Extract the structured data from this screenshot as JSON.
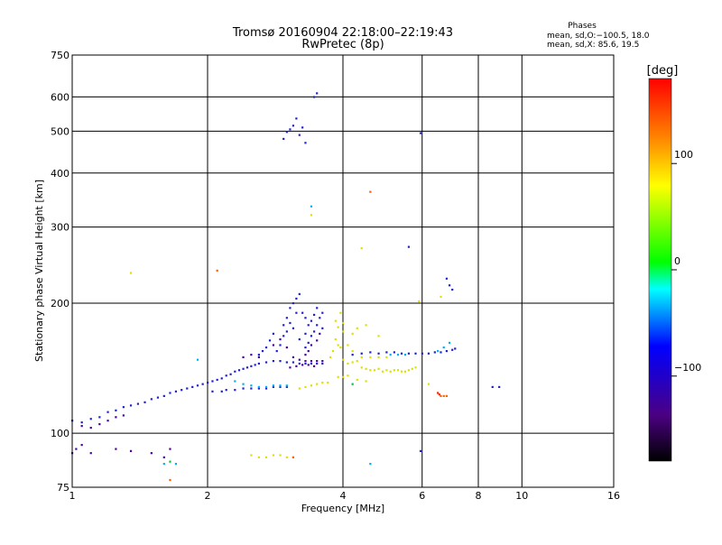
{
  "chart_data": {
    "type": "scatter",
    "title": "Tromsø 20160904 22:18:00–22:19:43",
    "subtitle": "RwPretec (8p)",
    "xlabel": "Frequency [MHz]",
    "ylabel": "Stationary phase Virtual Height [km]",
    "x_scale": "log",
    "y_scale": "log",
    "xlim": [
      1,
      16
    ],
    "ylim": [
      75,
      750
    ],
    "x_ticks": [
      1,
      2,
      4,
      6,
      8,
      10,
      16
    ],
    "x_tick_labels": [
      "1",
      "2",
      "4",
      "6",
      "8",
      "10",
      "16"
    ],
    "y_ticks": [
      75,
      100,
      200,
      300,
      400,
      500,
      600,
      750
    ],
    "y_tick_labels": [
      "75",
      "100",
      "200",
      "300",
      "400",
      "500",
      "600",
      "750"
    ],
    "grid": true,
    "phases_box": {
      "heading": "Phases",
      "line1": "mean, sd,O:−100.5, 18.0",
      "line2": "mean, sd,X:  85.6, 19.5"
    },
    "colorbar": {
      "label": "[deg]",
      "min": -180,
      "max": 180,
      "ticks": [
        100,
        0,
        -100
      ],
      "tick_labels": [
        "100",
        "0",
        "−100"
      ],
      "colors": [
        "#000000",
        "#4b0082",
        "#0000ff",
        "#00ffff",
        "#00ff00",
        "#ffff00",
        "#ff8000",
        "#ff0000"
      ]
    },
    "series": [
      {
        "color": "#2020d0",
        "points": [
          [
            1.0,
            107
          ],
          [
            1.05,
            106
          ],
          [
            1.1,
            108
          ],
          [
            1.15,
            109
          ],
          [
            1.2,
            112
          ],
          [
            1.25,
            113
          ],
          [
            1.3,
            115
          ],
          [
            1.35,
            116
          ],
          [
            1.4,
            117
          ],
          [
            1.45,
            118
          ],
          [
            1.5,
            120
          ],
          [
            1.55,
            121
          ],
          [
            1.6,
            122
          ],
          [
            1.65,
            124
          ],
          [
            1.7,
            125
          ],
          [
            1.75,
            126
          ],
          [
            1.8,
            127
          ],
          [
            1.85,
            128
          ],
          [
            1.9,
            129
          ],
          [
            1.95,
            130
          ],
          [
            2.0,
            131
          ],
          [
            2.05,
            132
          ],
          [
            2.1,
            133
          ],
          [
            2.15,
            134
          ],
          [
            2.2,
            136
          ],
          [
            2.25,
            137
          ],
          [
            2.3,
            139
          ],
          [
            2.35,
            140
          ],
          [
            2.4,
            141
          ],
          [
            2.45,
            142
          ],
          [
            2.5,
            143
          ],
          [
            2.55,
            144
          ],
          [
            2.6,
            145
          ],
          [
            2.7,
            146
          ],
          [
            2.8,
            147
          ],
          [
            2.9,
            147
          ],
          [
            3.0,
            146
          ],
          [
            3.1,
            146
          ],
          [
            3.2,
            145
          ],
          [
            3.3,
            145
          ],
          [
            3.4,
            145
          ],
          [
            3.5,
            145
          ],
          [
            3.6,
            145
          ],
          [
            2.2,
            126
          ],
          [
            2.3,
            126
          ],
          [
            2.4,
            127
          ],
          [
            2.5,
            127
          ],
          [
            2.6,
            127
          ],
          [
            2.7,
            127
          ],
          [
            2.8,
            128
          ],
          [
            2.9,
            128
          ],
          [
            3.0,
            128
          ],
          [
            2.05,
            125
          ],
          [
            2.15,
            125
          ],
          [
            4.2,
            152
          ],
          [
            4.4,
            153
          ],
          [
            4.6,
            154
          ],
          [
            4.8,
            153
          ],
          [
            5.0,
            154
          ],
          [
            5.2,
            154
          ],
          [
            5.4,
            153
          ],
          [
            5.6,
            153
          ],
          [
            5.8,
            153
          ],
          [
            6.0,
            153
          ],
          [
            6.2,
            153
          ],
          [
            6.4,
            154
          ],
          [
            6.6,
            154
          ],
          [
            6.8,
            155
          ],
          [
            7.0,
            156
          ],
          [
            7.1,
            157
          ],
          [
            3.6,
            190
          ],
          [
            3.55,
            185
          ],
          [
            3.5,
            178
          ],
          [
            3.45,
            172
          ],
          [
            3.4,
            168
          ],
          [
            3.35,
            162
          ],
          [
            3.3,
            158
          ],
          [
            3.5,
            195
          ],
          [
            3.45,
            188
          ],
          [
            3.4,
            182
          ],
          [
            3.6,
            175
          ],
          [
            3.3,
            170
          ],
          [
            3.2,
            165
          ],
          [
            3.1,
            175
          ],
          [
            3.05,
            180
          ],
          [
            3.0,
            172
          ],
          [
            2.95,
            168
          ],
          [
            2.9,
            160
          ],
          [
            2.85,
            155
          ],
          [
            3.15,
            190
          ],
          [
            3.1,
            200
          ],
          [
            3.05,
            195
          ],
          [
            3.0,
            185
          ],
          [
            2.95,
            178
          ],
          [
            2.8,
            170
          ],
          [
            2.75,
            164
          ],
          [
            2.7,
            158
          ],
          [
            2.65,
            155
          ],
          [
            2.6,
            152
          ],
          [
            3.2,
            210
          ],
          [
            3.15,
            205
          ],
          [
            3.25,
            190
          ],
          [
            3.3,
            185
          ],
          [
            3.35,
            178
          ],
          [
            3.0,
            498
          ],
          [
            3.05,
            505
          ],
          [
            3.1,
            515
          ],
          [
            3.15,
            535
          ],
          [
            2.95,
            480
          ],
          [
            3.2,
            490
          ],
          [
            3.25,
            510
          ],
          [
            3.3,
            470
          ],
          [
            3.45,
            600
          ],
          [
            3.5,
            612
          ],
          [
            5.95,
            495
          ],
          [
            5.6,
            270
          ],
          [
            6.8,
            228
          ],
          [
            6.9,
            220
          ],
          [
            7.0,
            215
          ],
          [
            8.6,
            128
          ],
          [
            8.9,
            128
          ],
          [
            5.95,
            91
          ]
        ]
      },
      {
        "color": "#4b00a0",
        "points": [
          [
            1.05,
            104
          ],
          [
            1.1,
            103
          ],
          [
            1.15,
            105
          ],
          [
            1.2,
            107
          ],
          [
            1.25,
            109
          ],
          [
            1.3,
            110
          ],
          [
            1.02,
            92
          ],
          [
            1.05,
            94
          ],
          [
            1.1,
            90
          ],
          [
            1.0,
            90
          ],
          [
            2.4,
            150
          ],
          [
            2.5,
            152
          ],
          [
            2.6,
            150
          ],
          [
            2.8,
            160
          ],
          [
            2.9,
            165
          ],
          [
            3.0,
            158
          ],
          [
            3.1,
            150
          ],
          [
            3.2,
            148
          ],
          [
            3.3,
            147
          ],
          [
            3.4,
            147
          ],
          [
            3.5,
            147
          ],
          [
            3.6,
            147
          ],
          [
            3.05,
            142
          ],
          [
            3.15,
            143
          ],
          [
            3.25,
            144
          ],
          [
            3.35,
            144
          ],
          [
            3.45,
            143
          ],
          [
            1.6,
            88
          ],
          [
            1.65,
            92
          ],
          [
            1.5,
            90
          ],
          [
            1.25,
            92
          ],
          [
            1.35,
            91
          ],
          [
            3.3,
            152
          ],
          [
            3.35,
            155
          ],
          [
            3.4,
            160
          ],
          [
            3.5,
            164
          ],
          [
            3.55,
            170
          ]
        ]
      },
      {
        "color": "#00b0f0",
        "points": [
          [
            2.3,
            132
          ],
          [
            2.4,
            130
          ],
          [
            2.5,
            129
          ],
          [
            2.6,
            128
          ],
          [
            2.7,
            128
          ],
          [
            2.8,
            129
          ],
          [
            2.9,
            129
          ],
          [
            3.0,
            129
          ],
          [
            1.6,
            85
          ],
          [
            1.7,
            85
          ],
          [
            3.4,
            335
          ],
          [
            5.1,
            152
          ],
          [
            5.3,
            152
          ],
          [
            5.5,
            152
          ],
          [
            4.6,
            85
          ],
          [
            1.9,
            148
          ],
          [
            6.9,
            162
          ],
          [
            6.7,
            158
          ],
          [
            6.5,
            155
          ]
        ]
      },
      {
        "color": "#e0e000",
        "points": [
          [
            3.3,
            128
          ],
          [
            3.4,
            129
          ],
          [
            3.5,
            130
          ],
          [
            3.6,
            131
          ],
          [
            3.7,
            131
          ],
          [
            3.2,
            127
          ],
          [
            3.75,
            150
          ],
          [
            3.8,
            155
          ],
          [
            3.9,
            160
          ],
          [
            3.85,
            165
          ],
          [
            3.95,
            158
          ],
          [
            4.0,
            148
          ],
          [
            4.1,
            145
          ],
          [
            4.2,
            146
          ],
          [
            4.3,
            147
          ],
          [
            4.4,
            142
          ],
          [
            4.5,
            141
          ],
          [
            4.6,
            140
          ],
          [
            4.7,
            140
          ],
          [
            4.8,
            141
          ],
          [
            4.9,
            139
          ],
          [
            5.0,
            140
          ],
          [
            5.1,
            139
          ],
          [
            5.2,
            140
          ],
          [
            5.3,
            140
          ],
          [
            5.4,
            139
          ],
          [
            5.5,
            139
          ],
          [
            5.6,
            140
          ],
          [
            5.7,
            141
          ],
          [
            5.8,
            142
          ],
          [
            4.2,
            170
          ],
          [
            4.3,
            175
          ],
          [
            4.0,
            180
          ],
          [
            4.5,
            178
          ],
          [
            4.8,
            168
          ],
          [
            3.9,
            176
          ],
          [
            3.85,
            182
          ],
          [
            3.95,
            190
          ],
          [
            4.0,
            172
          ],
          [
            4.1,
            160
          ],
          [
            4.2,
            155
          ],
          [
            4.4,
            150
          ],
          [
            4.6,
            150
          ],
          [
            4.8,
            150
          ],
          [
            5.0,
            150
          ],
          [
            3.9,
            135
          ],
          [
            4.0,
            135
          ],
          [
            4.1,
            136
          ],
          [
            4.3,
            133
          ],
          [
            2.5,
            89
          ],
          [
            2.6,
            88
          ],
          [
            2.7,
            88
          ],
          [
            2.8,
            89
          ],
          [
            2.9,
            89
          ],
          [
            3.0,
            88
          ],
          [
            3.1,
            88
          ],
          [
            3.4,
            320
          ],
          [
            4.4,
            268
          ],
          [
            1.35,
            235
          ],
          [
            6.6,
            207
          ],
          [
            5.9,
            202
          ],
          [
            4.5,
            132
          ],
          [
            6.2,
            130
          ]
        ]
      },
      {
        "color": "#ff6000",
        "points": [
          [
            4.6,
            362
          ],
          [
            6.6,
            122
          ],
          [
            6.7,
            122
          ],
          [
            6.8,
            122
          ],
          [
            1.65,
            78
          ],
          [
            3.1,
            88
          ],
          [
            2.1,
            238
          ]
        ]
      },
      {
        "color": "#ff2000",
        "points": [
          [
            6.5,
            124
          ],
          [
            6.55,
            123
          ]
        ]
      },
      {
        "color": "#00c040",
        "points": [
          [
            1.65,
            86
          ],
          [
            4.2,
            130
          ]
        ]
      }
    ]
  }
}
